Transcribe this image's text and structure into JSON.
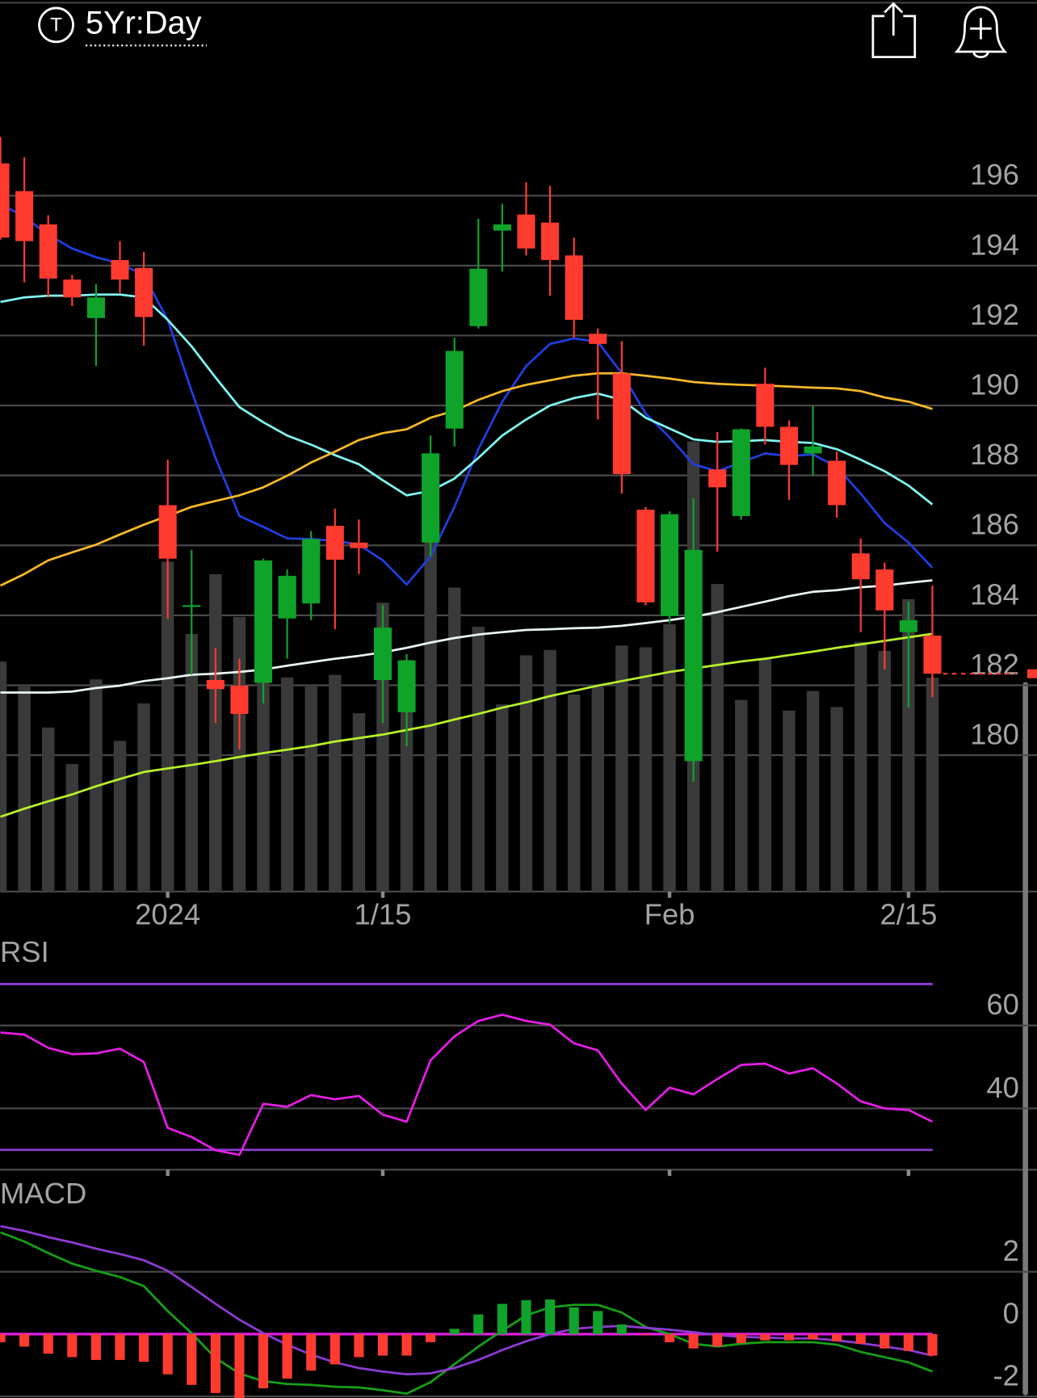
{
  "header": {
    "icon_label": "T",
    "title": "5Yr:Day"
  },
  "chart_data": [
    {
      "type": "candlestick",
      "categories": [
        null,
        null,
        null,
        null,
        null,
        null,
        null,
        "2024",
        null,
        null,
        null,
        null,
        null,
        null,
        null,
        null,
        "1/15",
        null,
        null,
        null,
        null,
        null,
        null,
        null,
        null,
        null,
        null,
        null,
        "Feb",
        null,
        null,
        null,
        null,
        null,
        null,
        null,
        null,
        null,
        "2/15",
        null
      ],
      "open": [
        196.92,
        196.13,
        195.18,
        193.6,
        192.5,
        194.16,
        193.93,
        187.15,
        184.24,
        182.15,
        181.99,
        182.07,
        183.91,
        184.34,
        186.56,
        186.08,
        182.15,
        181.23,
        186.08,
        189.34,
        192.27,
        195.0,
        195.46,
        195.23,
        194.29,
        192.05,
        190.92,
        187.02,
        183.98,
        179.83,
        188.17,
        186.84,
        190.62,
        189.39,
        188.63,
        188.42,
        185.77,
        185.31,
        183.52,
        183.42
      ],
      "high": [
        197.68,
        197.1,
        195.44,
        193.73,
        193.47,
        194.7,
        194.39,
        188.45,
        185.87,
        183.07,
        182.76,
        185.62,
        185.31,
        186.41,
        187.05,
        186.74,
        184.29,
        182.89,
        189.14,
        191.94,
        195.34,
        195.77,
        196.38,
        196.28,
        194.8,
        192.2,
        191.84,
        187.1,
        186.97,
        187.35,
        189.24,
        189.34,
        191.08,
        189.57,
        190.0,
        188.68,
        186.2,
        185.51,
        184.39,
        184.85
      ],
      "low": [
        194.74,
        193.52,
        193.09,
        192.84,
        191.13,
        193.22,
        191.71,
        183.91,
        182.3,
        180.92,
        180.16,
        181.48,
        182.76,
        183.86,
        183.6,
        185.18,
        180.92,
        180.26,
        185.69,
        188.83,
        192.2,
        193.83,
        194.29,
        193.14,
        191.94,
        189.6,
        187.48,
        184.29,
        183.78,
        179.24,
        185.82,
        186.74,
        188.88,
        187.3,
        187.99,
        186.79,
        183.52,
        182.45,
        181.36,
        181.66
      ],
      "close": [
        194.8,
        194.7,
        193.63,
        193.09,
        193.09,
        193.6,
        192.53,
        185.62,
        184.29,
        181.89,
        181.18,
        185.57,
        185.13,
        186.18,
        185.59,
        185.92,
        183.65,
        182.71,
        188.63,
        191.56,
        193.91,
        195.18,
        194.49,
        194.16,
        192.45,
        191.76,
        188.04,
        184.37,
        186.89,
        185.87,
        187.66,
        189.32,
        189.39,
        188.3,
        188.83,
        187.15,
        185.03,
        184.14,
        183.86,
        182.33
      ],
      "up_color": "#0fa32a",
      "down_color": "#ff3b30",
      "volume": [
        258,
        230,
        184,
        143,
        238,
        169,
        211,
        370,
        289,
        356,
        308,
        310,
        240,
        230,
        243,
        200,
        324,
        260,
        397,
        341,
        297,
        210,
        265,
        271,
        221,
        230,
        276,
        274,
        300,
        505,
        345,
        215,
        262,
        203,
        225,
        207,
        280,
        270,
        328,
        240
      ],
      "volume_color": "#3a3a3a",
      "volume_ylim": [
        0,
        910
      ],
      "series": [
        {
          "color": "#1f3fe0",
          "values": [
            195.77,
            195.39,
            194.88,
            194.49,
            194.24,
            194.06,
            193.73,
            192.45,
            190.41,
            188.5,
            186.84,
            186.53,
            186.2,
            186.18,
            186.13,
            186.02,
            185.57,
            184.88,
            185.69,
            187.1,
            188.75,
            190.11,
            191.13,
            191.76,
            191.92,
            191.82,
            190.92,
            189.77,
            189.09,
            188.32,
            188.12,
            188.37,
            188.63,
            188.55,
            188.6,
            188.24,
            187.48,
            186.64,
            186.08,
            185.36
          ]
        },
        {
          "color": "#7ff5f0",
          "values": [
            192.96,
            193.09,
            193.14,
            193.14,
            193.17,
            193.17,
            193.09,
            192.45,
            191.69,
            190.8,
            189.95,
            189.52,
            189.14,
            188.88,
            188.58,
            188.32,
            187.86,
            187.43,
            187.56,
            187.91,
            188.5,
            189.14,
            189.6,
            190.0,
            190.21,
            190.34,
            190.16,
            189.65,
            189.34,
            189.03,
            188.96,
            188.98,
            189.01,
            188.96,
            188.93,
            188.75,
            188.45,
            188.12,
            187.71,
            187.17
          ]
        },
        {
          "color": "#f5b82a",
          "values": [
            184.85,
            185.18,
            185.57,
            185.8,
            186.02,
            186.31,
            186.59,
            186.84,
            187.1,
            187.27,
            187.43,
            187.66,
            187.99,
            188.37,
            188.68,
            189.01,
            189.21,
            189.32,
            189.65,
            189.85,
            190.16,
            190.41,
            190.59,
            190.72,
            190.85,
            190.92,
            190.92,
            190.85,
            190.77,
            190.67,
            190.62,
            190.59,
            190.57,
            190.54,
            190.51,
            190.49,
            190.41,
            190.23,
            190.11,
            189.9
          ]
        },
        {
          "color": "#e8f4f4",
          "values": [
            181.79,
            181.79,
            181.79,
            181.82,
            181.92,
            181.99,
            182.12,
            182.2,
            182.3,
            182.33,
            182.38,
            182.45,
            182.56,
            182.66,
            182.76,
            182.84,
            182.94,
            183.07,
            183.22,
            183.35,
            183.45,
            183.52,
            183.58,
            183.6,
            183.63,
            183.65,
            183.7,
            183.78,
            183.86,
            183.96,
            184.09,
            184.24,
            184.39,
            184.55,
            184.67,
            184.72,
            184.8,
            184.85,
            184.93,
            185.0
          ]
        },
        {
          "color": "#b8f02a",
          "values": [
            178.24,
            178.47,
            178.68,
            178.88,
            179.11,
            179.32,
            179.52,
            179.62,
            179.72,
            179.83,
            179.95,
            180.06,
            180.16,
            180.26,
            180.39,
            180.49,
            180.59,
            180.72,
            180.85,
            181.02,
            181.18,
            181.36,
            181.51,
            181.69,
            181.84,
            181.99,
            182.12,
            182.25,
            182.38,
            182.48,
            182.58,
            182.68,
            182.76,
            182.86,
            182.96,
            183.07,
            183.17,
            183.27,
            183.37,
            183.47
          ]
        }
      ],
      "ylim": [
        176.1,
        199.3
      ],
      "yticks": [
        180,
        182,
        184,
        186,
        188,
        190,
        192,
        194,
        196
      ],
      "grid": true,
      "grid_color": "#4a4a4a",
      "last_price_line": true
    },
    {
      "type": "line",
      "title": "RSI",
      "series": [
        {
          "color": "#e41ee4",
          "values": [
            58.3,
            57.8,
            54.6,
            53.1,
            53.3,
            54.4,
            51.2,
            35.3,
            33.1,
            29.9,
            28.8,
            41.1,
            40.4,
            43.2,
            42.2,
            43.0,
            38.5,
            36.8,
            51.6,
            57.4,
            61.1,
            62.6,
            61.1,
            60.2,
            55.7,
            54.0,
            46.0,
            39.6,
            45.0,
            43.4,
            47.1,
            50.5,
            50.8,
            48.4,
            49.7,
            46.0,
            41.7,
            40.0,
            39.6,
            36.8
          ]
        }
      ],
      "ylim": [
        25.2,
        79.4
      ],
      "yticks": [
        60,
        40
      ],
      "reference_lines": [
        70,
        30
      ],
      "reference_color": "#8e3bd4",
      "grid": true,
      "grid_color": "#4a4a4a"
    },
    {
      "type": "macd",
      "title": "MACD",
      "series": [
        {
          "color": "#16a016",
          "values": [
            3.26,
            2.97,
            2.6,
            2.26,
            2.03,
            1.83,
            1.54,
            0.74,
            0.03,
            -0.77,
            -1.26,
            -1.51,
            -1.6,
            -1.63,
            -1.69,
            -1.71,
            -1.8,
            -1.91,
            -1.54,
            -0.97,
            -0.4,
            0.11,
            0.6,
            0.86,
            0.94,
            0.94,
            0.69,
            0.23,
            0,
            -0.31,
            -0.4,
            -0.31,
            -0.26,
            -0.26,
            -0.26,
            -0.34,
            -0.57,
            -0.74,
            -0.91,
            -1.2
          ]
        },
        {
          "color": "#8e3bd4",
          "values": [
            3.46,
            3.31,
            3.11,
            2.94,
            2.74,
            2.57,
            2.37,
            2.03,
            1.51,
            0.97,
            0.46,
            0.03,
            -0.34,
            -0.66,
            -0.91,
            -1.09,
            -1.2,
            -1.29,
            -1.26,
            -1.09,
            -0.83,
            -0.51,
            -0.23,
            0,
            0.17,
            0.23,
            0.26,
            0.2,
            0.14,
            0.06,
            -0.03,
            -0.09,
            -0.11,
            -0.14,
            -0.14,
            -0.2,
            -0.29,
            -0.4,
            -0.51,
            -0.69
          ]
        }
      ],
      "histogram": [
        -0.26,
        -0.4,
        -0.63,
        -0.74,
        -0.83,
        -0.83,
        -0.89,
        -1.29,
        -1.63,
        -1.89,
        -2.05,
        -1.74,
        -1.43,
        -1.17,
        -0.97,
        -0.74,
        -0.69,
        -0.69,
        -0.26,
        0.17,
        0.63,
        0.97,
        1.09,
        1.11,
        0.86,
        0.74,
        0.31,
        -0.03,
        -0.26,
        -0.46,
        -0.4,
        -0.29,
        -0.2,
        -0.2,
        -0.17,
        -0.23,
        -0.31,
        -0.46,
        -0.54,
        -0.69
      ],
      "up_color": "#0fa32a",
      "down_color": "#ff3b30",
      "ylim": [
        -2.05,
        4.9
      ],
      "yticks": [
        2,
        0,
        -2
      ],
      "zero_line_color": "#e41ee4",
      "grid": true,
      "grid_color": "#4a4a4a"
    }
  ]
}
